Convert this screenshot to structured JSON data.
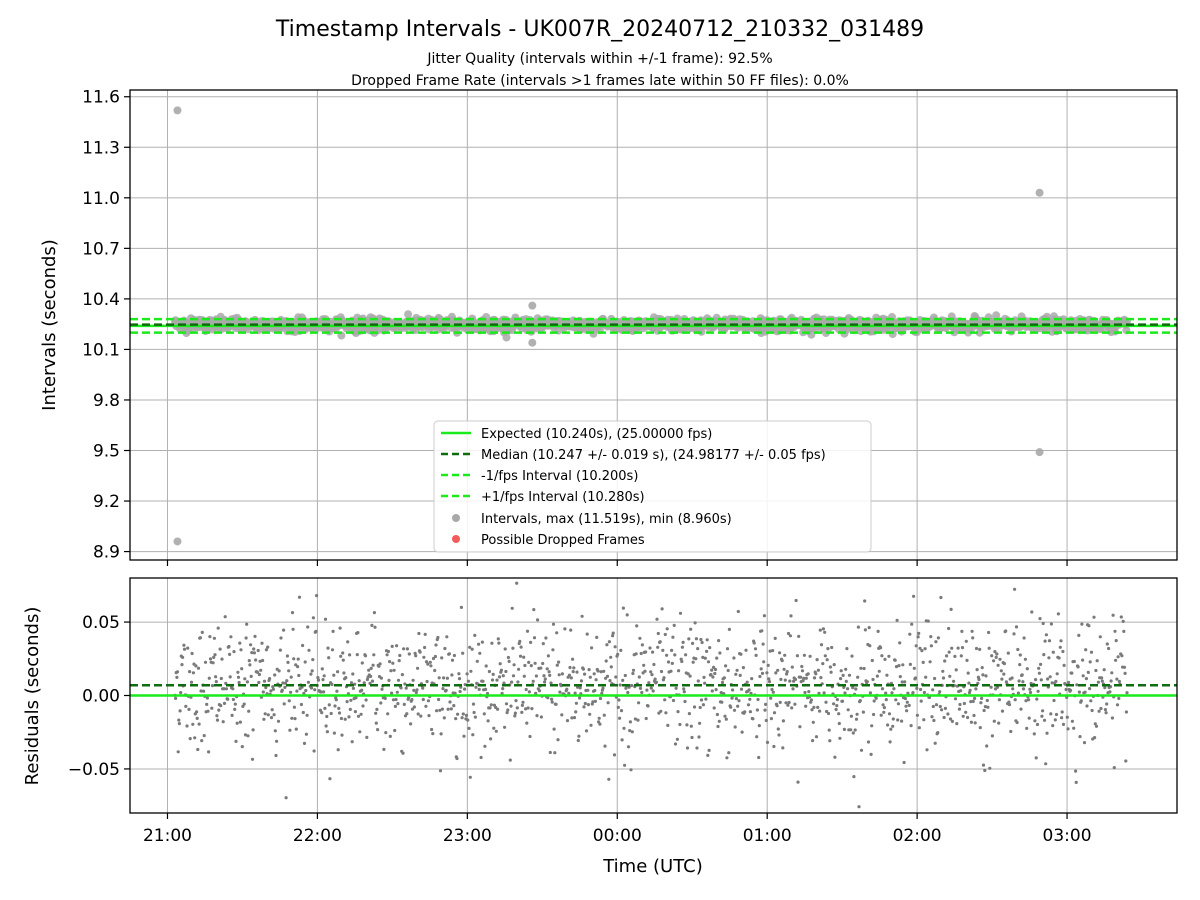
{
  "chart_data": [
    {
      "type": "scatter",
      "title": "Timestamp Intervals - UK007R_20240712_210332_031489",
      "subtitle_lines": [
        "Jitter Quality (intervals within +/-1 frame): 92.5%",
        "Dropped Frame Rate (intervals >1 frames late within 50 FF files): 0.0%"
      ],
      "xlabel": "",
      "ylabel": "Intervals (seconds)",
      "ylim": [
        8.85,
        11.64
      ],
      "yticks": [
        8.9,
        9.2,
        9.5,
        9.8,
        10.1,
        10.4,
        10.7,
        11.0,
        11.3,
        11.6
      ],
      "grid": true,
      "legend_position": "lower-center",
      "reference_lines": [
        {
          "name": "Expected (10.240s), (25.00000 fps)",
          "y": 10.24,
          "style": "solid",
          "color": "#1bea1b"
        },
        {
          "name": "Median (10.247 +/- 0.019 s), (24.98177 +/- 0.05 fps)",
          "y": 10.247,
          "style": "dashed",
          "color": "#0f6b0f"
        },
        {
          "name": "-1/fps Interval (10.200s)",
          "y": 10.2,
          "style": "dashed",
          "color": "#1bea1b"
        },
        {
          "name": "+1/fps Interval (10.280s)",
          "y": 10.28,
          "style": "dashed",
          "color": "#1bea1b"
        }
      ],
      "series": [
        {
          "name": "Intervals, max (11.519s), min (8.960s)",
          "color": "#a9a9a9",
          "band_center": 10.247,
          "band_spread": 0.019
        },
        {
          "name": "Possible Dropped Frames",
          "color": "#f35c5c",
          "values": []
        }
      ],
      "outliers": [
        {
          "x": "21:04",
          "y": 11.519
        },
        {
          "x": "21:04",
          "y": 8.96
        },
        {
          "x": "02:49",
          "y": 11.03
        },
        {
          "x": "02:49",
          "y": 9.49
        },
        {
          "x": "23:26",
          "y": 10.36
        },
        {
          "x": "23:26",
          "y": 10.14
        }
      ]
    },
    {
      "type": "scatter",
      "title": "",
      "xlabel": "Time (UTC)",
      "ylabel": "Residuals (seconds)",
      "ylim": [
        -0.08,
        0.08
      ],
      "yticks": [
        -0.05,
        0.0,
        0.05
      ],
      "ytick_labels": [
        "−0.05",
        "0.00",
        "0.05"
      ],
      "grid": true,
      "x_range": [
        "21:03",
        "03:24"
      ],
      "xticks": [
        "21:00",
        "22:00",
        "23:00",
        "00:00",
        "01:00",
        "02:00",
        "03:00"
      ],
      "reference_lines": [
        {
          "name": "Expected",
          "y": 0.0,
          "style": "solid",
          "color": "#1bea1b"
        },
        {
          "name": "Median",
          "y": 0.007,
          "style": "dashed",
          "color": "#0f6b0f"
        }
      ],
      "series": [
        {
          "name": "Residuals",
          "color": "#7a7a7a",
          "center": 0.007,
          "spread": 0.022,
          "count": 1500
        }
      ]
    }
  ],
  "colors": {
    "axes": "#000000",
    "grid": "#b0b0b0",
    "expected": "#1bea1b",
    "median": "#0f6b0f",
    "interval_points": "#a9a9a9",
    "residual_points": "#7a7a7a"
  }
}
